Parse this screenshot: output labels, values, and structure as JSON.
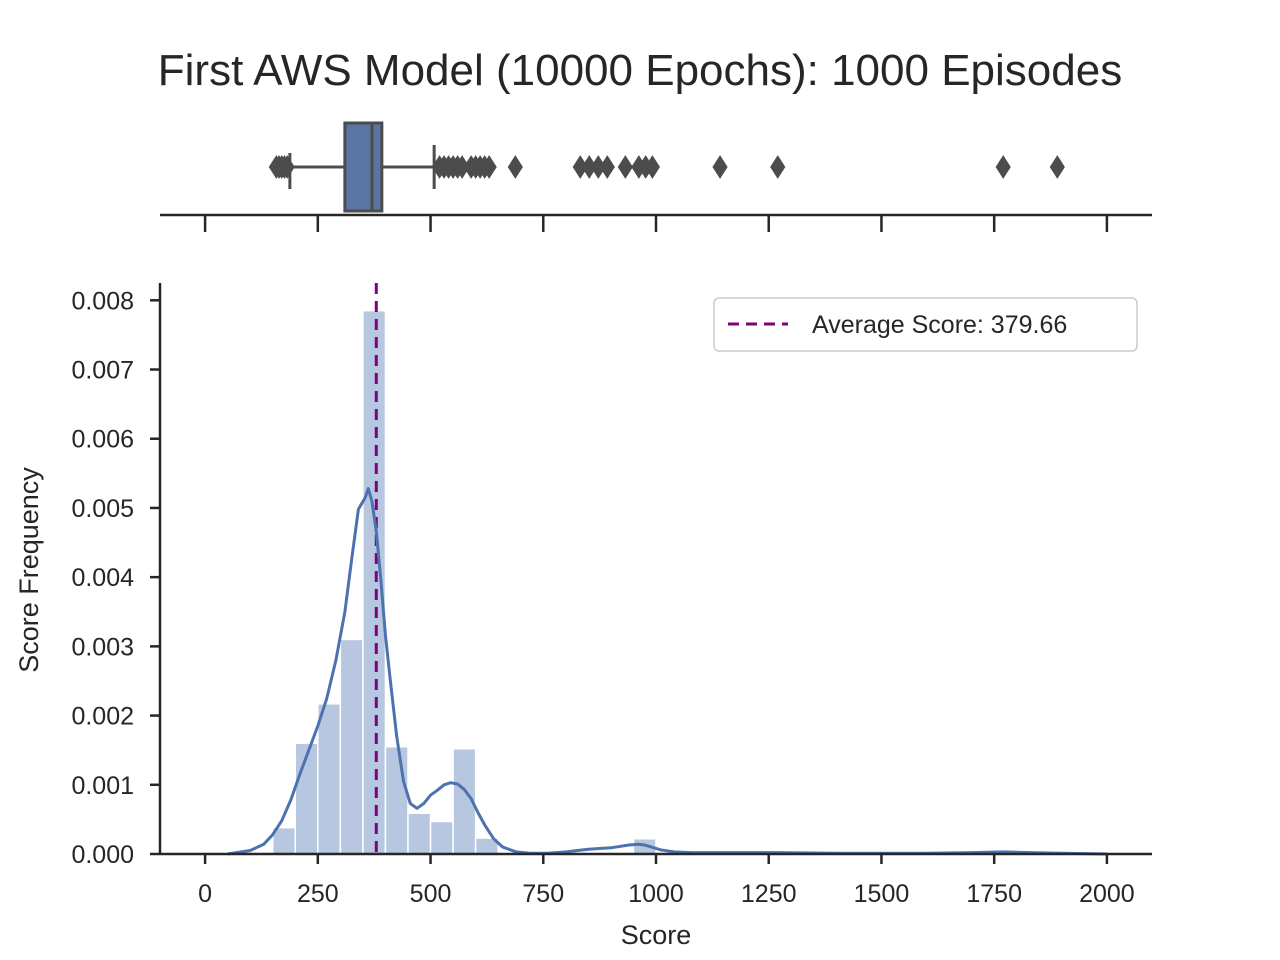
{
  "chart_data": {
    "title": "First AWS Model (10000 Epochs): 1000 Episodes",
    "xlabel": "Score",
    "ylabel": "Score Frequency",
    "xlim": [
      -100,
      2100
    ],
    "ylim": [
      0,
      0.00825
    ],
    "x_ticks": [
      0,
      250,
      500,
      750,
      1000,
      1250,
      1500,
      1750,
      2000
    ],
    "x_tick_labels": [
      "0",
      "250",
      "500",
      "750",
      "1000",
      "1250",
      "1500",
      "1750",
      "2000"
    ],
    "y_ticks": [
      0,
      0.001,
      0.002,
      0.003,
      0.004,
      0.005,
      0.006,
      0.007,
      0.008
    ],
    "y_tick_labels": [
      "0.000",
      "0.001",
      "0.002",
      "0.003",
      "0.004",
      "0.005",
      "0.006",
      "0.007",
      "0.008"
    ],
    "grid": false,
    "boxplot": {
      "type": "box",
      "q1": 310,
      "median": 370,
      "q3": 392,
      "whisker_low": 188,
      "whisker_high": 508,
      "outliers": [
        158,
        164,
        170,
        176,
        182,
        520,
        530,
        540,
        550,
        560,
        570,
        590,
        600,
        610,
        620,
        630,
        688,
        832,
        852,
        872,
        892,
        932,
        962,
        977,
        992,
        1142,
        1270,
        1770,
        1890
      ],
      "color": "#5975a4"
    },
    "histogram": {
      "type": "bar",
      "bins": [
        {
          "x0": 150,
          "x1": 200,
          "value": 0.00038
        },
        {
          "x0": 200,
          "x1": 250,
          "value": 0.0016
        },
        {
          "x0": 250,
          "x1": 300,
          "value": 0.00217
        },
        {
          "x0": 300,
          "x1": 350,
          "value": 0.0031
        },
        {
          "x0": 350,
          "x1": 400,
          "value": 0.00785
        },
        {
          "x0": 400,
          "x1": 450,
          "value": 0.00155
        },
        {
          "x0": 450,
          "x1": 500,
          "value": 0.00059
        },
        {
          "x0": 500,
          "x1": 550,
          "value": 0.00047
        },
        {
          "x0": 550,
          "x1": 600,
          "value": 0.00152
        },
        {
          "x0": 600,
          "x1": 650,
          "value": 0.00023
        },
        {
          "x0": 950,
          "x1": 1000,
          "value": 0.00022
        }
      ],
      "color": "#4c72b0",
      "alpha": 0.4
    },
    "kde": {
      "type": "line",
      "x": [
        50,
        100,
        130,
        150,
        170,
        190,
        210,
        230,
        250,
        270,
        290,
        310,
        325,
        340,
        355,
        362,
        370,
        380,
        390,
        400,
        410,
        425,
        440,
        455,
        470,
        485,
        500,
        515,
        530,
        545,
        560,
        575,
        590,
        605,
        620,
        640,
        660,
        690,
        720,
        760,
        800,
        850,
        900,
        940,
        960,
        975,
        990,
        1010,
        1040,
        1080,
        1150,
        1270,
        1400,
        1600,
        1700,
        1770,
        1830,
        1900,
        2000
      ],
      "y": [
        0,
        5e-05,
        0.00014,
        0.00028,
        0.00048,
        0.00078,
        0.00115,
        0.0015,
        0.00185,
        0.00225,
        0.0028,
        0.0035,
        0.00425,
        0.00498,
        0.00515,
        0.00528,
        0.0051,
        0.00465,
        0.00395,
        0.00315,
        0.00255,
        0.0017,
        0.00105,
        0.00073,
        0.00066,
        0.00073,
        0.00085,
        0.00092,
        0.001,
        0.00103,
        0.00101,
        0.00093,
        0.0008,
        0.0006,
        0.00042,
        0.00022,
        0.0001,
        3e-05,
        1e-05,
        1e-05,
        3e-05,
        7e-05,
        9e-05,
        0.00013,
        0.00014,
        0.00013,
        0.0001,
        6e-05,
        3e-05,
        2e-05,
        2e-05,
        2e-05,
        1e-05,
        1e-05,
        2e-05,
        3e-05,
        2e-05,
        1e-05,
        0
      ],
      "color": "#4c72b0"
    },
    "mean_line": {
      "value": 379.66,
      "color": "#800080",
      "style": "dashed",
      "label": "Average Score: 379.66"
    },
    "legend": {
      "placement": "upper right",
      "entries": [
        "Average Score: 379.66"
      ]
    }
  }
}
